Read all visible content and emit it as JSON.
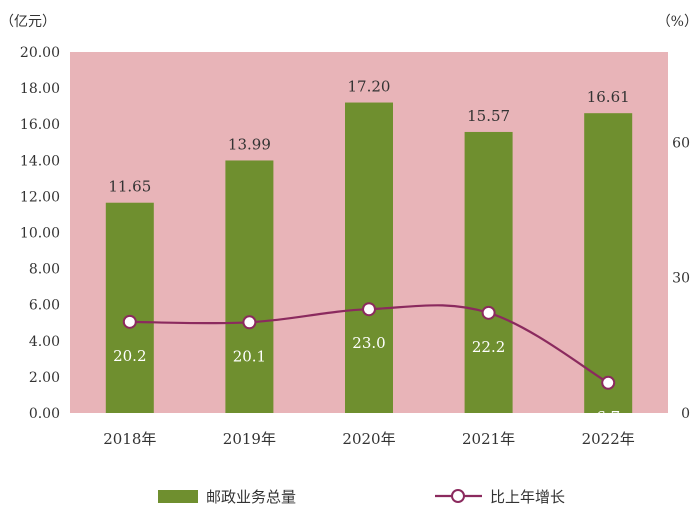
{
  "chart_data": {
    "type": "bar",
    "categories": [
      "2018年",
      "2019年",
      "2020年",
      "2021年",
      "2022年"
    ],
    "series": [
      {
        "name": "邮政业务总量",
        "type": "bar",
        "axis": "left",
        "values": [
          11.65,
          13.99,
          17.2,
          15.57,
          16.61
        ],
        "labels": [
          "11.65",
          "13.99",
          "17.20",
          "15.57",
          "16.61"
        ]
      },
      {
        "name": "比上年增长",
        "type": "line",
        "axis": "right",
        "values": [
          20.2,
          20.1,
          23.0,
          22.2,
          6.7
        ],
        "labels": [
          "20.2",
          "20.1",
          "23.0",
          "22.2",
          "6.7"
        ]
      }
    ],
    "left_axis": {
      "unit": "（亿元）",
      "ylim": [
        0,
        20
      ],
      "ticks": [
        "0.00",
        "2.00",
        "4.00",
        "6.00",
        "8.00",
        "10.00",
        "12.00",
        "14.00",
        "16.00",
        "18.00",
        "20.00"
      ]
    },
    "right_axis": {
      "unit": "（%）",
      "ylim": [
        0,
        80
      ],
      "ticks": [
        "0",
        "30",
        "60"
      ],
      "tick_values": [
        0,
        30,
        60
      ]
    },
    "grid": false,
    "legend_position": "bottom",
    "colors": {
      "plot_background": "#e8b4b8",
      "bar": "#6f8f2f",
      "line": "#8b2a5e",
      "marker_fill": "#ffffff"
    }
  }
}
